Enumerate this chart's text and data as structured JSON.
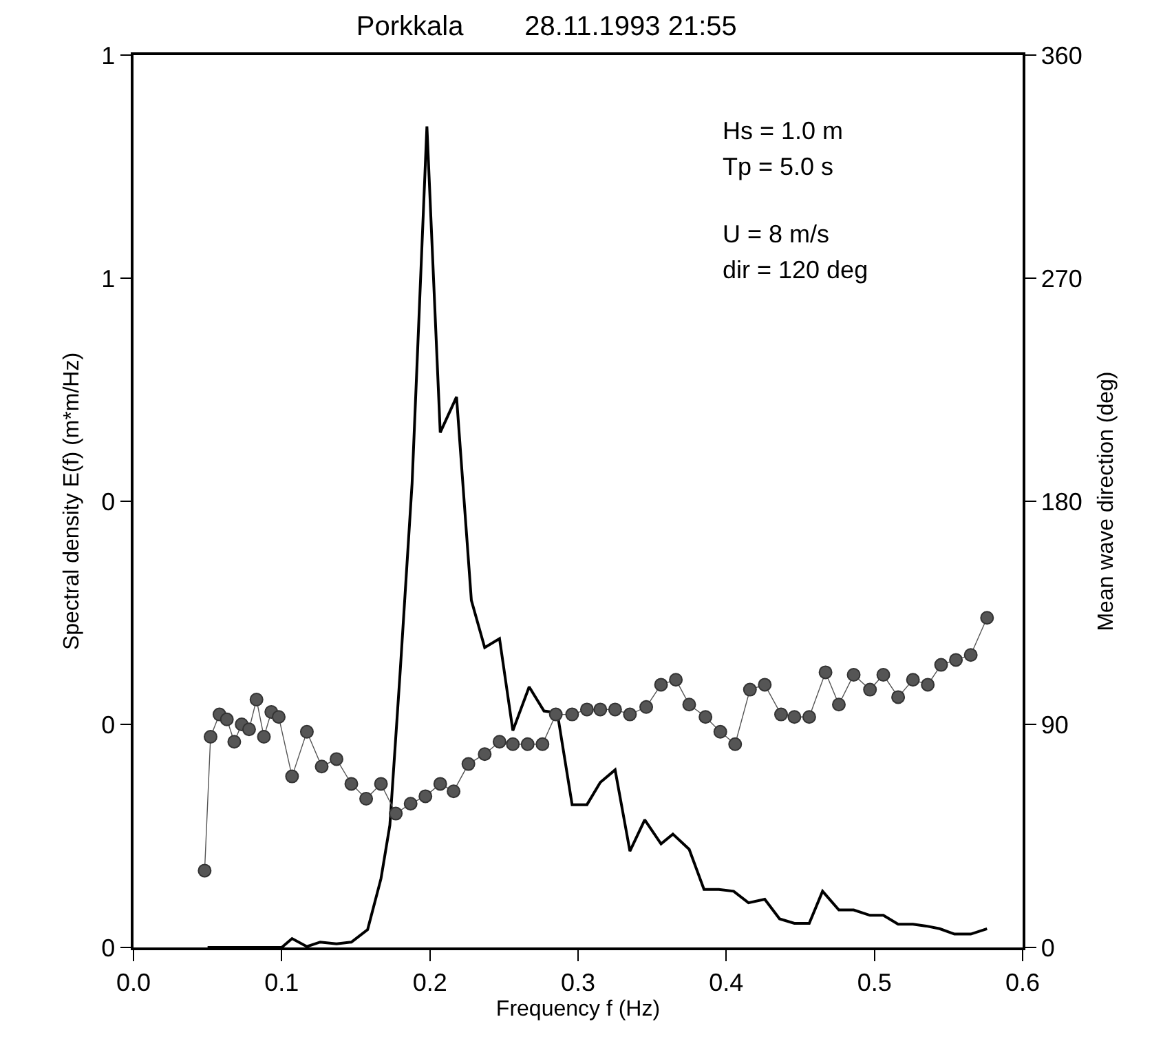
{
  "chart_data": {
    "type": "line",
    "title": "Porkkala        28.11.1993 21:55",
    "xlabel": "Frequency f (Hz)",
    "ylabel": "Spectral density E(f) (m*m/Hz)",
    "y2label": "Mean wave direction (deg)",
    "annotations": [
      "Hs = 1.0 m",
      "Tp = 5.0 s",
      "U = 8 m/s",
      "dir = 120 deg"
    ],
    "xlim": [
      0,
      0.6
    ],
    "xticks": [
      {
        "value": 0,
        "label": "0.0"
      },
      {
        "value": 0.1,
        "label": "0.1"
      },
      {
        "value": 0.2,
        "label": "0.2"
      },
      {
        "value": 0.3,
        "label": "0.3"
      },
      {
        "value": 0.4,
        "label": "0.4"
      },
      {
        "value": 0.5,
        "label": "0.5"
      },
      {
        "value": 0.6,
        "label": "0.6"
      }
    ],
    "ylim": [
      0,
      1
    ],
    "yticks": [
      0,
      {
        "value": 0.25,
        "label": "0"
      },
      {
        "value": 0.5,
        "label": "0"
      },
      {
        "value": 0.75,
        "label": "1"
      },
      1
    ],
    "y2lim": [
      0,
      360
    ],
    "y2ticks": [
      0,
      90,
      180,
      270,
      360
    ],
    "grid": false,
    "series": [
      {
        "color": "#000000",
        "marker": "none",
        "line_style": "solid",
        "x": [
          0.05,
          0.1,
          0.107,
          0.117,
          0.126,
          0.137,
          0.147,
          0.158,
          0.167,
          0.173,
          0.18,
          0.188,
          0.198,
          0.207,
          0.218,
          0.228,
          0.237,
          0.247,
          0.256,
          0.267,
          0.277,
          0.286,
          0.296,
          0.306,
          0.315,
          0.325,
          0.335,
          0.345,
          0.356,
          0.364,
          0.375,
          0.385,
          0.395,
          0.405,
          0.415,
          0.426,
          0.436,
          0.446,
          0.456,
          0.465,
          0.476,
          0.486,
          0.497,
          0.506,
          0.516,
          0.526,
          0.535,
          0.544,
          0.554,
          0.565,
          0.576
        ],
        "values": [
          0,
          0,
          0.01,
          0.001,
          0.006,
          0.004,
          0.006,
          0.02,
          0.077,
          0.137,
          0.31,
          0.52,
          0.92,
          0.577,
          0.617,
          0.389,
          0.336,
          0.346,
          0.243,
          0.292,
          0.265,
          0.263,
          0.16,
          0.16,
          0.185,
          0.199,
          0.108,
          0.143,
          0.116,
          0.127,
          0.11,
          0.065,
          0.065,
          0.063,
          0.05,
          0.054,
          0.032,
          0.027,
          0.027,
          0.063,
          0.042,
          0.042,
          0.036,
          0.036,
          0.026,
          0.026,
          0.024,
          0.021,
          0.015,
          0.015,
          0.021
        ]
      },
      {
        "axis": "y2",
        "color": "#555555",
        "marker": "circle",
        "line_style": "solid",
        "x": [
          0.048,
          0.052,
          0.058,
          0.063,
          0.068,
          0.073,
          0.078,
          0.083,
          0.088,
          0.093,
          0.098,
          0.107,
          0.117,
          0.127,
          0.137,
          0.147,
          0.157,
          0.167,
          0.177,
          0.187,
          0.197,
          0.207,
          0.216,
          0.226,
          0.237,
          0.247,
          0.256,
          0.266,
          0.276,
          0.285,
          0.296,
          0.306,
          0.315,
          0.325,
          0.335,
          0.346,
          0.356,
          0.366,
          0.375,
          0.386,
          0.396,
          0.406,
          0.416,
          0.426,
          0.437,
          0.446,
          0.456,
          0.467,
          0.476,
          0.486,
          0.497,
          0.506,
          0.516,
          0.526,
          0.536,
          0.545,
          0.555,
          0.565,
          0.576
        ],
        "values": [
          31,
          85,
          94,
          92,
          83,
          90,
          88,
          100,
          85,
          95,
          93,
          69,
          87,
          73,
          76,
          66,
          60,
          66,
          54,
          58,
          61,
          66,
          63,
          74,
          78,
          83,
          82,
          82,
          82,
          94,
          94,
          96,
          96,
          96,
          94,
          97,
          106,
          108,
          98,
          93,
          87,
          82,
          104,
          106,
          94,
          93,
          93,
          111,
          98,
          110,
          104,
          110,
          101,
          108,
          106,
          114,
          116,
          118,
          133
        ]
      }
    ]
  }
}
